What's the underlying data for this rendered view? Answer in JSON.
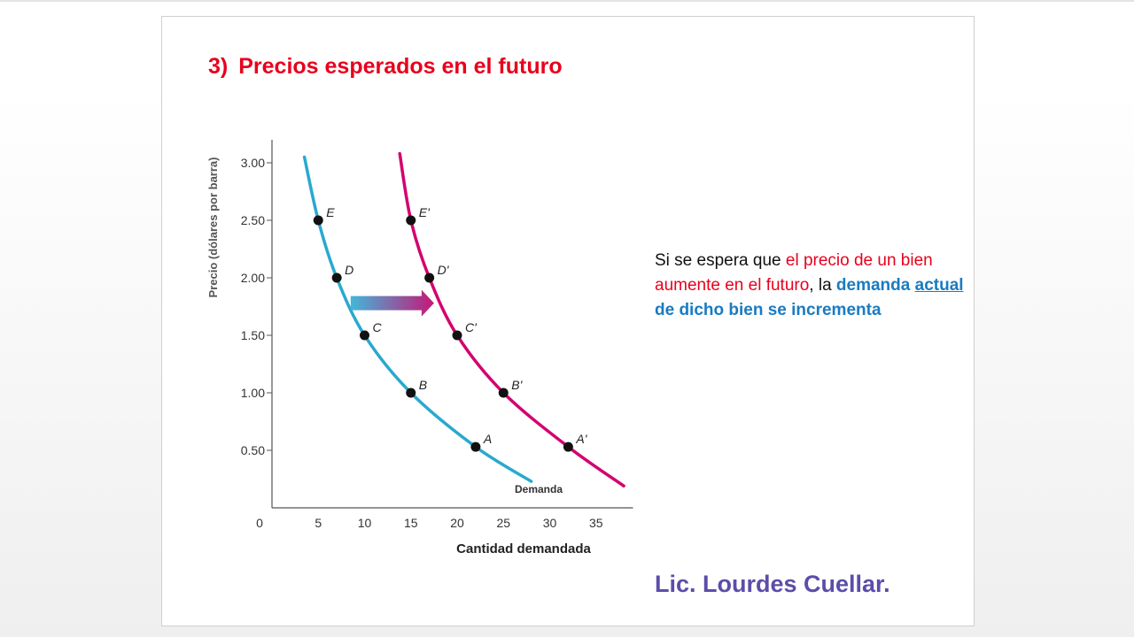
{
  "slide": {
    "title_number": "3)",
    "title_text": "Precios esperados en el futuro",
    "author": "Lic. Lourdes Cuellar."
  },
  "note": {
    "part1": "Si se espera que ",
    "part2": "el precio de un bien aumente en el futuro",
    "part3": ", la ",
    "part4": "demanda ",
    "part5": "actual",
    "part6": " de dicho bien se incrementa"
  },
  "colors": {
    "title": "#e8001c",
    "note_red": "#e8001c",
    "note_blue": "#1a7bc1",
    "author": "#5b4ea8",
    "demand_original": "#29a9cf",
    "demand_shifted": "#d4006f",
    "arrow_start": "#43b7d9",
    "arrow_end": "#c41878",
    "point": "#111111",
    "axis": "#555555"
  },
  "chart_data": {
    "type": "line",
    "xlabel": "Cantidad demandada",
    "ylabel": "Precio (dólares por barra)",
    "xlim": [
      0,
      39
    ],
    "ylim": [
      0,
      3.2
    ],
    "xticks": [
      "0",
      "5",
      "10",
      "15",
      "20",
      "25",
      "30",
      "35"
    ],
    "xtick_values": [
      0,
      5,
      10,
      15,
      20,
      25,
      30,
      35
    ],
    "yticks": [
      "0.50",
      "1.00",
      "1.50",
      "2.00",
      "2.50",
      "3.00"
    ],
    "ytick_values": [
      0.5,
      1.0,
      1.5,
      2.0,
      2.5,
      3.0
    ],
    "series": [
      {
        "name": "Demanda",
        "points": [
          {
            "label": "E",
            "x": 5,
            "y": 2.5
          },
          {
            "label": "D",
            "x": 7,
            "y": 2.0
          },
          {
            "label": "C",
            "x": 10,
            "y": 1.5
          },
          {
            "label": "B",
            "x": 15,
            "y": 1.0
          },
          {
            "label": "A",
            "x": 22,
            "y": 0.53
          }
        ],
        "curve": [
          [
            3.5,
            3.05
          ],
          [
            5,
            2.5
          ],
          [
            7,
            2.0
          ],
          [
            10,
            1.5
          ],
          [
            15,
            1.0
          ],
          [
            22,
            0.53
          ],
          [
            28,
            0.23
          ]
        ]
      },
      {
        "points": [
          {
            "label": "E'",
            "x": 15,
            "y": 2.5
          },
          {
            "label": "D'",
            "x": 17,
            "y": 2.0
          },
          {
            "label": "C'",
            "x": 20,
            "y": 1.5
          },
          {
            "label": "B'",
            "x": 25,
            "y": 1.0
          },
          {
            "label": "A'",
            "x": 32,
            "y": 0.53
          }
        ],
        "curve": [
          [
            13.8,
            3.08
          ],
          [
            15,
            2.5
          ],
          [
            17,
            2.0
          ],
          [
            20,
            1.5
          ],
          [
            25,
            1.0
          ],
          [
            32,
            0.53
          ],
          [
            38,
            0.19
          ]
        ]
      }
    ],
    "arrow": {
      "from": [
        8.5,
        1.78
      ],
      "to": [
        17.5,
        1.78
      ]
    }
  }
}
